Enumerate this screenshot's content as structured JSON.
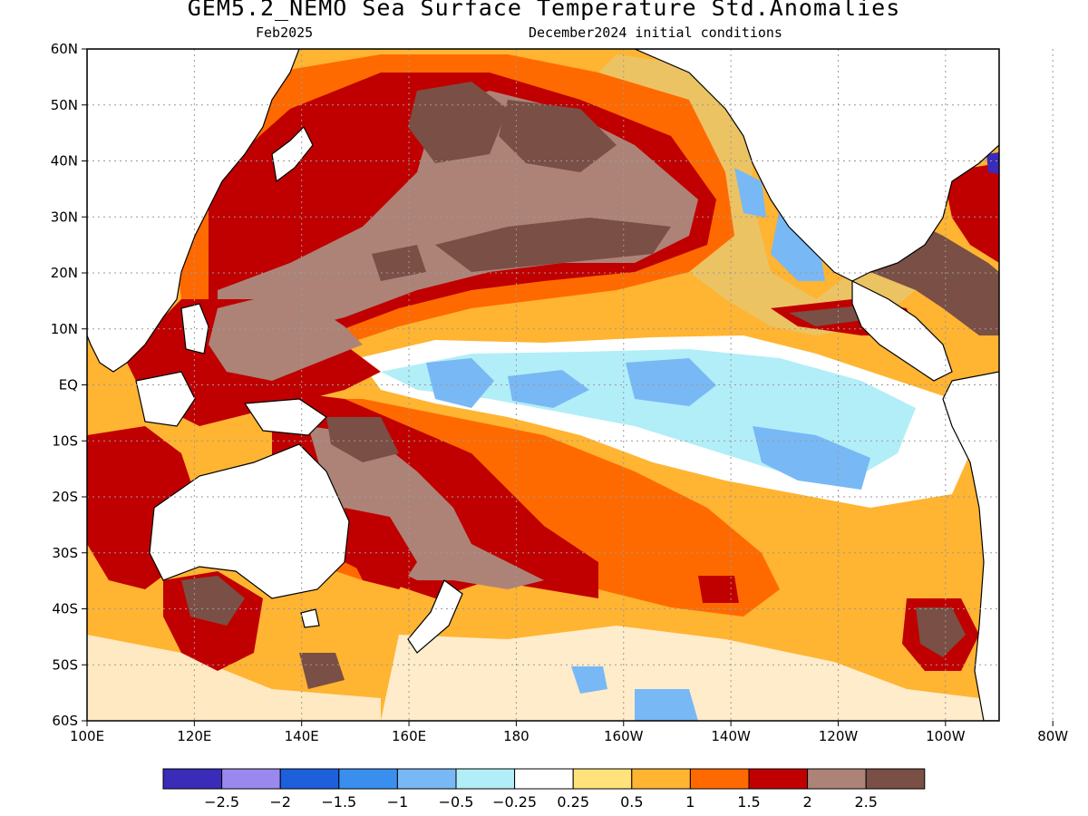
{
  "header": {
    "title": "GEM5.2_NEMO Sea Surface Temperature Std.Anomalies",
    "valid_month": "Feb2025",
    "init": "December2024 initial conditions"
  },
  "axes": {
    "lat_labels": [
      "60N",
      "50N",
      "40N",
      "30N",
      "20N",
      "10N",
      "EQ",
      "10S",
      "20S",
      "30S",
      "40S",
      "50S",
      "60S"
    ],
    "lon_labels": [
      "100E",
      "120E",
      "140E",
      "160E",
      "180",
      "160W",
      "140W",
      "120W",
      "100W",
      "80W"
    ]
  },
  "colorbar": {
    "colors": [
      "#3a2bb8",
      "#9b88ee",
      "#1c60dc",
      "#3a8fee",
      "#78b8f5",
      "#b2eef8",
      "#ffffff",
      "#ffe37a",
      "#ffb432",
      "#ff6a00",
      "#c00000",
      "#ad8378",
      "#7a4f45"
    ],
    "labels": [
      "−2.5",
      "−2",
      "−1.5",
      "−1",
      "−0.5",
      "−0.25",
      "0.25",
      "0.5",
      "1",
      "1.5",
      "2",
      "2.5"
    ]
  },
  "palette": {
    "land": "#ffffff",
    "grid": "#9a9a9a",
    "ocean_base": "#ffb432",
    "cold_tongue": "#b2eef8",
    "cold_core": "#78b8f5",
    "warm": "#ff6a00",
    "hot": "#c00000",
    "very_hot": "#ad8378",
    "extreme": "#7a4f45"
  }
}
